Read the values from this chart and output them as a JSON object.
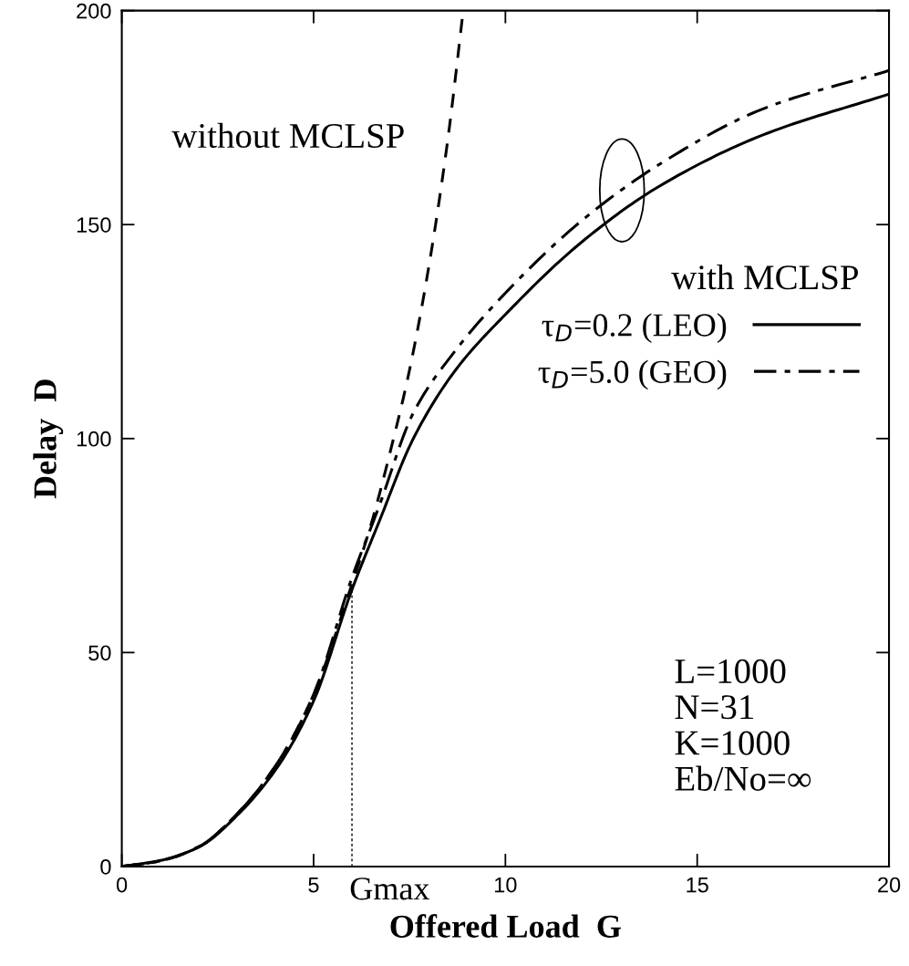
{
  "chart_data": {
    "type": "line",
    "xlabel": "Offered Load  G",
    "ylabel": "Delay  D",
    "xlim": [
      0,
      20
    ],
    "ylim": [
      0,
      200
    ],
    "xticks": [
      0,
      5,
      10,
      15,
      20
    ],
    "yticks": [
      0,
      50,
      100,
      150,
      200
    ],
    "grid": false,
    "legend": "right",
    "legend_title": "with MCLSP",
    "marker": "none",
    "series": [
      {
        "name": "τ$_{D}$=0.2 (LEO)",
        "color": "#000000",
        "line_style": "solid",
        "x": [
          0,
          1.0,
          2.0,
          3.1,
          4.1,
          5.0,
          6.0,
          6.7,
          7.6,
          8.7,
          10.0,
          12.0,
          14.0,
          16.7,
          20.0
        ],
        "values": [
          0,
          1.4,
          4.5,
          12.8,
          23.8,
          38.7,
          64.7,
          80.4,
          100,
          116,
          129,
          146,
          158.9,
          170.9,
          180.5
        ]
      },
      {
        "name": "τ$_{D}$=5.0 (GEO)",
        "color": "#000000",
        "line_style": "dashdot",
        "x": [
          0,
          1.0,
          2.0,
          3.1,
          4.1,
          5.0,
          6.0,
          6.7,
          7.6,
          8.7,
          10.0,
          12.0,
          14.0,
          16.7,
          20.0
        ],
        "values": [
          0,
          1.3,
          4.6,
          13.2,
          24.8,
          40.2,
          67.5,
          84,
          106,
          120.6,
          134,
          151,
          164,
          177,
          186
        ]
      },
      {
        "color": "#000000",
        "line_style": "dashed",
        "x": [
          0,
          1.0,
          2.0,
          3.1,
          4.1,
          5.0,
          6.0,
          6.5,
          7.0,
          7.5,
          8.0,
          8.5,
          8.9
        ],
        "values": [
          0,
          1.3,
          4.6,
          13.2,
          24.8,
          40.2,
          66,
          80,
          97,
          116,
          140,
          170,
          200
        ]
      },
      {
        "color": "#000000",
        "line_style": "dotted",
        "x": [
          6.0,
          6.0
        ],
        "values": [
          0,
          64.7
        ]
      }
    ],
    "annotations": [
      "without MCLSP",
      {
        "text": "Gmax",
        "x": 6.0,
        "y": 0
      },
      "L=1000\nN=31\nK=1000\nEb/No=∞"
    ]
  }
}
